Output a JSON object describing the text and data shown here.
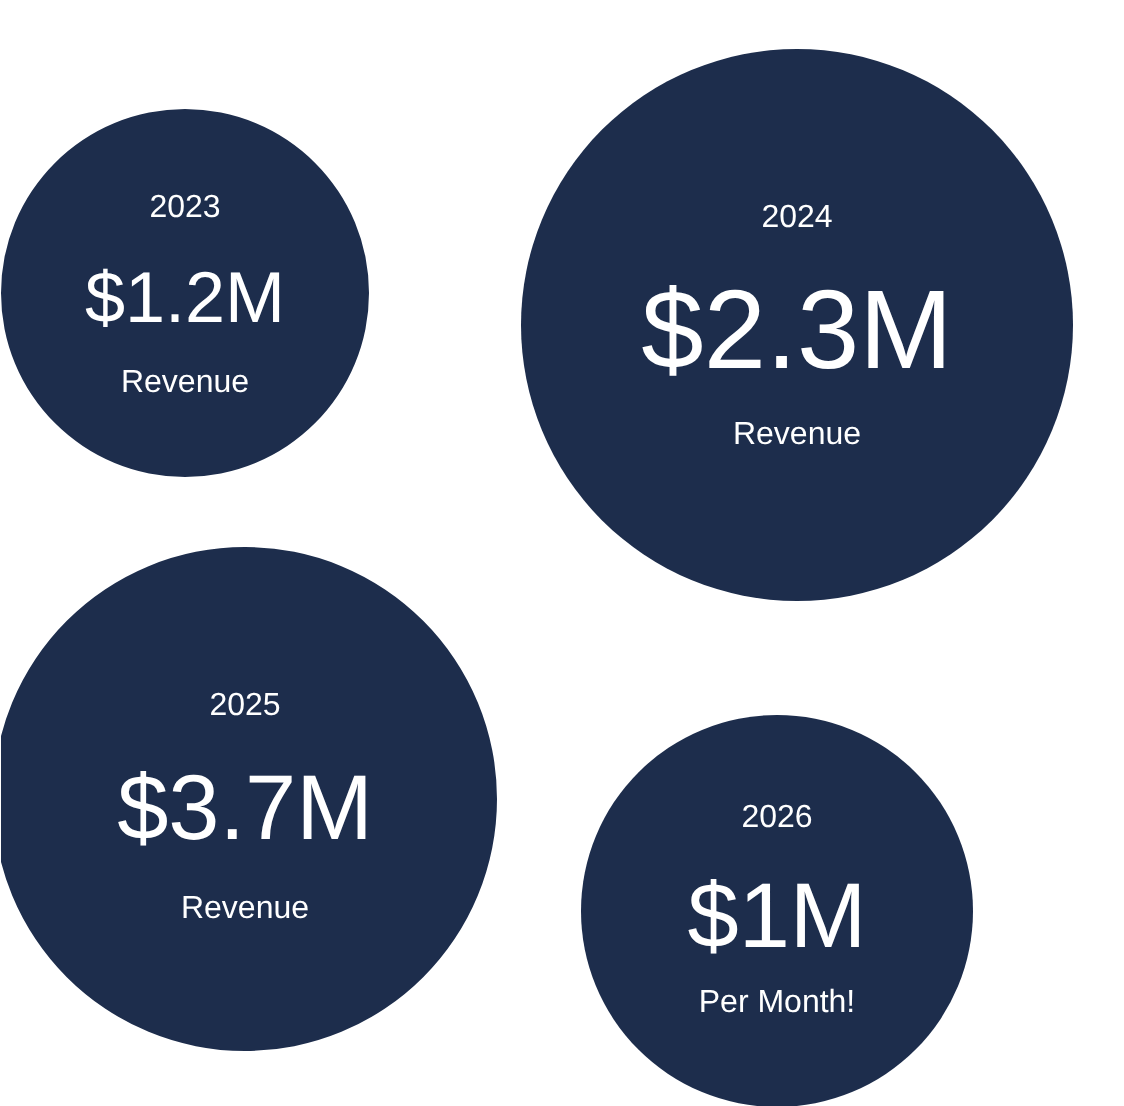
{
  "chart_data": {
    "type": "other",
    "categories": [
      "2023",
      "2024",
      "2025",
      "2026"
    ],
    "values": [
      1.2,
      2.3,
      3.7,
      1
    ],
    "value_labels": [
      "$1.2M",
      "$2.3M",
      "$3.7M",
      "$1M"
    ],
    "annotations": [
      "Revenue",
      "Revenue",
      "Revenue",
      "Per Month!"
    ],
    "color": "#1d2d4c"
  }
}
